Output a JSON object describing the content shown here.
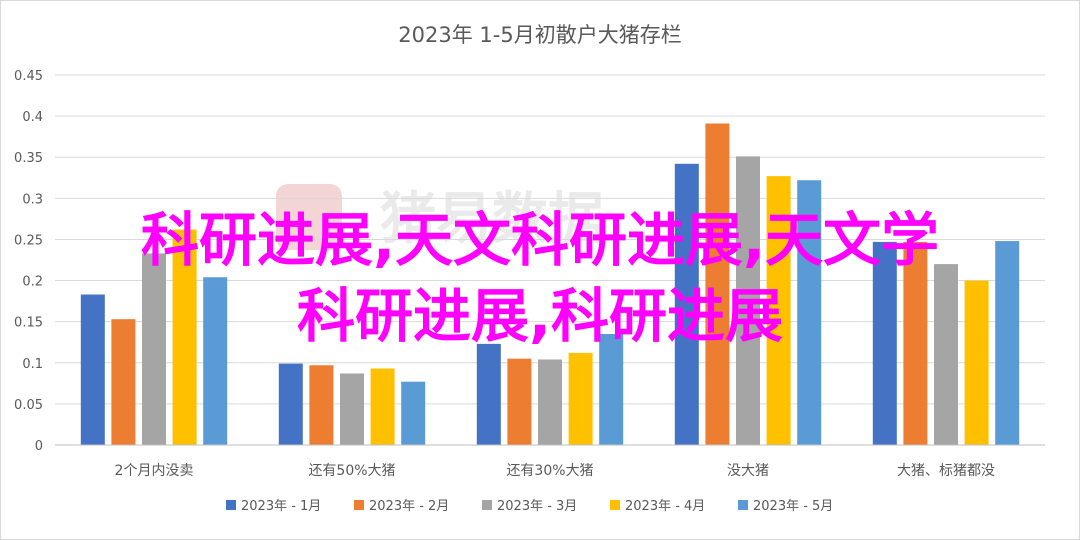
{
  "chart_data": {
    "type": "bar",
    "title": "2023年 1-5月初散户大猪存栏",
    "xlabel": "",
    "ylabel": "",
    "categories": [
      "2个月内没卖",
      "还有50%大猪",
      "还有30%大猪",
      "没大猪",
      "大猪、标猪都没"
    ],
    "series": [
      {
        "name": "2023年 - 1月",
        "color": "#4472c4",
        "values": [
          0.183,
          0.099,
          0.123,
          0.342,
          0.247
        ]
      },
      {
        "name": "2023年 - 2月",
        "color": "#ed7d31",
        "values": [
          0.153,
          0.097,
          0.105,
          0.391,
          0.247
        ]
      },
      {
        "name": "2023年 - 3月",
        "color": "#a5a5a5",
        "values": [
          0.233,
          0.087,
          0.104,
          0.351,
          0.22
        ]
      },
      {
        "name": "2023年 - 4月",
        "color": "#ffc000",
        "values": [
          0.262,
          0.093,
          0.112,
          0.327,
          0.2
        ]
      },
      {
        "name": "2023年 - 5月",
        "color": "#5b9bd5",
        "values": [
          0.204,
          0.077,
          0.135,
          0.322,
          0.248
        ]
      }
    ],
    "ylim": [
      0,
      0.45
    ],
    "yticks": [
      "0",
      "0.05",
      "0.1",
      "0.15",
      "0.2",
      "0.25",
      "0.3",
      "0.35",
      "0.4",
      "0.45"
    ],
    "grid": true,
    "legend_position": "bottom"
  },
  "watermark": "猪易数据",
  "overlay": {
    "line1": "科研进展,天文科研进展,天文学",
    "line2": "科研进展,科研进展"
  }
}
